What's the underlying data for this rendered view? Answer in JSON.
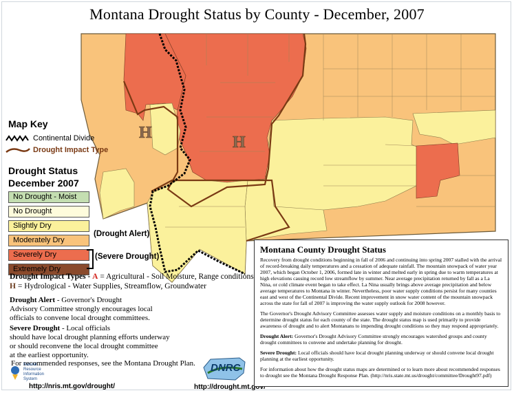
{
  "title": "Montana Drought Status by County - December, 2007",
  "map_key": {
    "title": "Map Key",
    "continental_divide": "Continental Divide",
    "impact_type": "Drought Impact Type"
  },
  "drought_status": {
    "title_line1": "Drought Status",
    "title_line2": "December 2007",
    "categories": [
      {
        "label": "No Drought - Moist",
        "color": "#c4deb1"
      },
      {
        "label": "No Drought",
        "color": "#fefcdc"
      },
      {
        "label": "Slightly Dry",
        "color": "#fbf19c"
      },
      {
        "label": "Moderately Dry",
        "color": "#f9c37b"
      },
      {
        "label": "Severely Dry",
        "color": "#ec6d4e"
      },
      {
        "label": "Extremely Dry",
        "color": "#8a4a2c"
      }
    ],
    "drought_alert": "(Drought Alert)",
    "severe_drought": "(Severe Drought)"
  },
  "map_labels": {
    "h_west": "H",
    "h_central": "H"
  },
  "impact_types": {
    "lead": "Drought Impact Types -",
    "a_letter": "A",
    "a_text": "= Agricultural - Soil Moisture, Range conditions",
    "h_letter": "H",
    "h_text": "= Hydrological - Water Supplies, Streamflow, Groundwater"
  },
  "alert_note": {
    "term": "Drought Alert",
    "text1": " - Governor's Drought",
    "text2": "Advisory Committee strongly encourages local",
    "text3": "officials to convene local drought committees."
  },
  "severe_note": {
    "term": "Severe Drought",
    "text1": " - Local officials",
    "text2": "should have local drought planning efforts underway",
    "text3": "or should reconvene the local drought committee",
    "text4": "at the earliest opportunity."
  },
  "responses_note": "For recommended responses, see the Montana Drought Plan.",
  "logo_nris": {
    "line1": "Natural Resource",
    "line2": "Information",
    "line3": "System"
  },
  "logo_dnrc": "DNRC",
  "urls": {
    "nris": "http://nris.mt.gov/drought/",
    "drought": "http://drought.mt.gov/"
  },
  "status_box": {
    "title": "Montana County Drought Status",
    "p1": "Recovery from drought conditions beginning in fall of 2006 and continuing into spring 2007 stalled with the arrival of record-breaking daily temperatures and a cessation of adequate rainfall. The mountain snowpack of water year 2007, which began October 1, 2006, formed late in winter and melted early in spring due to warm temperatures at high elevations causing record low streamflow by summer. Near average precipitation returned by fall as a La Nina, or cold climate event began to take effect. La Nina usually brings above average precipitation and below average temperatures to Montana in winter. Nevertheless, poor water supply conditions persist for many counties east and west of the Continental Divide. Recent improvement in snow water content of the mountain snowpack across the state for fall of 2007 is improving the water supply outlook for 2008 however.",
    "p2": "The Governor's Drought Advisory Committee assesses water supply and moisture conditions on a monthly basis to determine drought status for each county of the state. The drought status map is used primarily to provide awareness of drought and to alert Montanans to impending drought conditions so they may respond appropriately.",
    "p3_term": "Drought Alert:",
    "p3": " Governor's Drought Advisory Committee strongly encourages watershed groups and county drought committees to convene and undertake planning for drought.",
    "p4_term": "Severe Drought:",
    "p4": " Local officials should have local drought planning underway or should convene local drought planning at the earliest opportunity.",
    "p5": "For information about how the drought status maps are determined or to learn more about recommended responses to drought see the Montana Drought Response Plan. (http://nris.state.mt.us/drought/committee/Drought97.pdf)"
  }
}
